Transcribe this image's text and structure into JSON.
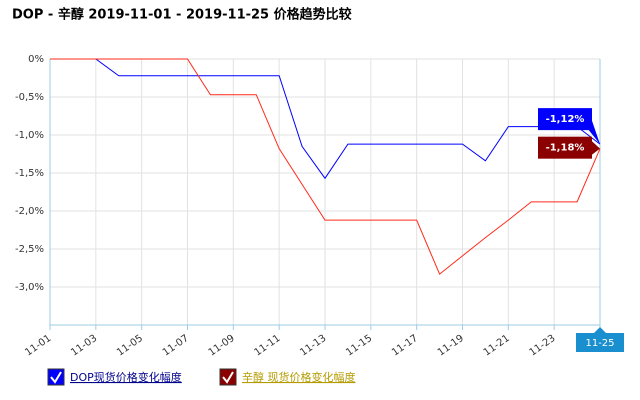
{
  "chart_data": {
    "type": "line",
    "title": "DOP - 辛醇 2019-11-01 - 2019-11-25 价格趋势比较",
    "categories": [
      "11-01",
      null,
      "11-03",
      null,
      "11-05",
      null,
      "11-07",
      null,
      "11-09",
      null,
      "11-11",
      null,
      "11-13",
      null,
      "11-15",
      null,
      "11-17",
      null,
      "11-19",
      null,
      "11-21",
      null,
      "11-23",
      null,
      "11-25"
    ],
    "ylim": [
      -3.5,
      0
    ],
    "yticks": [
      {
        "value": 0,
        "label": "0%"
      },
      {
        "value": -0.5,
        "label": "-0,5%"
      },
      {
        "value": -1.0,
        "label": "-1,0%"
      },
      {
        "value": -1.5,
        "label": "-1,5%"
      },
      {
        "value": -2.0,
        "label": "-2,0%"
      },
      {
        "value": -2.5,
        "label": "-2,5%"
      },
      {
        "value": -3.0,
        "label": "-3,0%"
      }
    ],
    "grid": true,
    "series": [
      {
        "name": "DOP现货价格变化幅度",
        "color": "#0000ff",
        "label_color": "#0000ff",
        "values": [
          0,
          0,
          0,
          -0.22,
          -0.22,
          -0.22,
          -0.22,
          -0.22,
          -0.22,
          -0.22,
          -0.22,
          -1.15,
          -1.57,
          -1.12,
          -1.12,
          -1.12,
          -1.12,
          -1.12,
          -1.12,
          -1.34,
          -0.89,
          -0.89,
          -0.89,
          -0.89,
          -1.12
        ],
        "value_labels": [
          null,
          null,
          null,
          null,
          null,
          null,
          null,
          null,
          null,
          null,
          null,
          null,
          null,
          null,
          null,
          null,
          null,
          null,
          null,
          null,
          null,
          null,
          null,
          null,
          "-1,12%"
        ]
      },
      {
        "name": "辛醇 现货价格变化幅度",
        "color": "#ff2a1a",
        "label_color": "#8b0000",
        "values": [
          0,
          0,
          0,
          0,
          0,
          0,
          0,
          -0.47,
          -0.47,
          -0.47,
          -1.18,
          -1.65,
          -2.12,
          -2.12,
          -2.12,
          -2.12,
          -2.12,
          -2.83,
          -2.59,
          -2.35,
          -2.12,
          -1.88,
          -1.88,
          -1.88,
          -1.18
        ],
        "value_labels": [
          null,
          null,
          null,
          null,
          null,
          null,
          null,
          null,
          null,
          null,
          null,
          null,
          null,
          null,
          null,
          null,
          null,
          null,
          null,
          null,
          null,
          null,
          null,
          null,
          "-1,18%"
        ]
      }
    ]
  }
}
